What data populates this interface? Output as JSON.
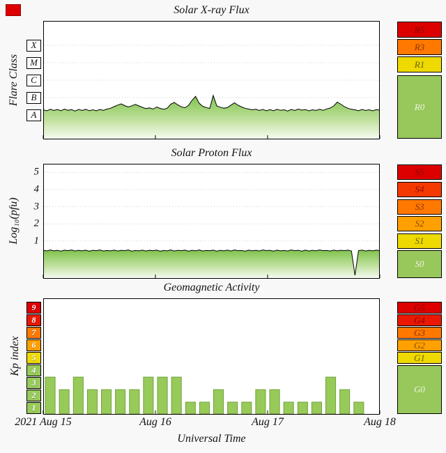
{
  "figure": {
    "bg_color": "#f8f8f8",
    "xlabel": "Universal Time",
    "x_tick_labels": [
      "2021 Aug 15",
      "Aug 16",
      "Aug 17",
      "Aug 18"
    ],
    "corner_marker_color": "#dd0000"
  },
  "chart_data": [
    {
      "id": "xray",
      "type": "line",
      "title": "Solar X-ray Flux",
      "ylabel": "Flare Class",
      "ylim": [
        0,
        6.8
      ],
      "line_color": "#000000",
      "fill_top": "#7fc24c",
      "fill_mid": "#bfe09c",
      "fill_bottom": "#f6fbf1",
      "y_ticks": {
        "style": "boxed-letters",
        "items": [
          {
            "label": "X",
            "value": 5.4
          },
          {
            "label": "M",
            "value": 4.4
          },
          {
            "label": "C",
            "value": 3.4
          },
          {
            "label": "B",
            "value": 2.4
          },
          {
            "label": "A",
            "value": 1.4
          }
        ]
      },
      "scale_column": [
        {
          "label": "R5",
          "bg": "#dd0000",
          "fg": "#8a0000"
        },
        {
          "label": "R3",
          "bg": "#ff7800",
          "fg": "#8a3400"
        },
        {
          "label": "R1",
          "bg": "#eed900",
          "fg": "#6e6000"
        },
        {
          "label": "R0",
          "bg": "#98c75c",
          "fg": "#edf6df",
          "fill": true
        }
      ],
      "values": [
        1.7,
        1.64,
        1.73,
        1.66,
        1.72,
        1.65,
        1.74,
        1.67,
        1.71,
        1.63,
        1.72,
        1.66,
        1.73,
        1.65,
        1.7,
        1.64,
        1.72,
        1.67,
        1.74,
        1.79,
        1.88,
        1.97,
        2.04,
        1.94,
        1.86,
        1.93,
        2.01,
        1.92,
        1.84,
        1.77,
        1.81,
        1.74,
        1.86,
        1.78,
        1.73,
        1.79,
        2.02,
        2.12,
        1.98,
        1.87,
        1.82,
        1.95,
        2.24,
        2.47,
        2.08,
        1.9,
        1.83,
        1.78,
        2.52,
        1.92,
        1.85,
        1.79,
        1.83,
        1.97,
        2.1,
        1.96,
        1.86,
        1.79,
        1.74,
        1.7,
        1.73,
        1.66,
        1.72,
        1.64,
        1.71,
        1.65,
        1.73,
        1.67,
        1.7,
        1.63,
        1.72,
        1.66,
        1.74,
        1.68,
        1.71,
        1.64,
        1.7,
        1.66,
        1.73,
        1.67,
        1.75,
        1.8,
        1.92,
        2.14,
        2.02,
        1.88,
        1.79,
        1.73,
        1.7,
        1.65,
        1.72,
        1.66,
        1.7,
        1.64,
        1.71,
        1.68
      ]
    },
    {
      "id": "proton",
      "type": "line",
      "title": "Solar Proton Flux",
      "ylabel": "Log₁₀(pfu)",
      "ylim": [
        -1.2,
        5.5
      ],
      "line_color": "#000000",
      "fill_top": "#7fc24c",
      "fill_mid": "#bfe09c",
      "fill_bottom": "#f6fbf1",
      "y_ticks": {
        "style": "plain",
        "items": [
          {
            "label": "5",
            "value": 5
          },
          {
            "label": "4",
            "value": 4
          },
          {
            "label": "3",
            "value": 3
          },
          {
            "label": "2",
            "value": 2
          },
          {
            "label": "1",
            "value": 1
          }
        ]
      },
      "scale_column": [
        {
          "label": "S5",
          "bg": "#dd0000",
          "fg": "#8a0000",
          "value": 5
        },
        {
          "label": "S4",
          "bg": "#f43a00",
          "fg": "#8a1000",
          "value": 4
        },
        {
          "label": "S3",
          "bg": "#ff7800",
          "fg": "#8a3400",
          "value": 3
        },
        {
          "label": "S2",
          "bg": "#ffa000",
          "fg": "#8a4a00",
          "value": 2
        },
        {
          "label": "S1",
          "bg": "#eed900",
          "fg": "#6e6000",
          "value": 1
        },
        {
          "label": "S0",
          "bg": "#98c75c",
          "fg": "#edf6df",
          "fill": true
        }
      ],
      "values": [
        0.47,
        0.42,
        0.48,
        0.43,
        0.46,
        0.41,
        0.47,
        0.44,
        0.48,
        0.42,
        0.46,
        0.43,
        0.47,
        0.41,
        0.46,
        0.44,
        0.48,
        0.42,
        0.45,
        0.43,
        0.47,
        0.42,
        0.46,
        0.44,
        0.48,
        0.41,
        0.45,
        0.43,
        0.47,
        0.42,
        0.46,
        0.44,
        0.47,
        0.41,
        0.45,
        0.43,
        0.48,
        0.42,
        0.46,
        0.44,
        0.47,
        0.41,
        0.46,
        0.43,
        0.48,
        0.42,
        0.45,
        0.44,
        0.47,
        0.41,
        0.46,
        0.43,
        0.47,
        0.42,
        0.48,
        0.44,
        0.45,
        0.41,
        0.47,
        0.43,
        0.46,
        0.42,
        0.48,
        0.44,
        0.46,
        0.41,
        0.47,
        0.43,
        0.45,
        0.42,
        0.48,
        0.44,
        0.46,
        0.41,
        0.47,
        0.42,
        0.46,
        0.43,
        0.48,
        0.44,
        0.45,
        0.42,
        0.47,
        0.43,
        0.46,
        0.44,
        0.47,
        0.42,
        -1.0,
        0.45,
        0.47,
        0.42,
        0.46,
        0.43,
        0.47,
        0.44
      ]
    },
    {
      "id": "kp",
      "type": "bar",
      "title": "Geomagnetic Activity",
      "ylabel": "Kp index",
      "ylim": [
        0,
        9.3
      ],
      "bar_color": "#98ca5a",
      "bar_border": "#6fa23a",
      "y_ticks": {
        "style": "boxed-colored",
        "items": [
          {
            "label": "9",
            "value": 9,
            "bg": "#dd0000",
            "fg": "#ffffff"
          },
          {
            "label": "8",
            "value": 8,
            "bg": "#ea1800",
            "fg": "#ffffff"
          },
          {
            "label": "7",
            "value": 7,
            "bg": "#ff7800",
            "fg": "#ffffff"
          },
          {
            "label": "6",
            "value": 6,
            "bg": "#ffa000",
            "fg": "#ffffff"
          },
          {
            "label": "5",
            "value": 5,
            "bg": "#eed900",
            "fg": "#ffffff"
          },
          {
            "label": "4",
            "value": 4,
            "bg": "#98ca5a",
            "fg": "#ffffff"
          },
          {
            "label": "3",
            "value": 3,
            "bg": "#98ca5a",
            "fg": "#ffffff"
          },
          {
            "label": "2",
            "value": 2,
            "bg": "#98ca5a",
            "fg": "#ffffff"
          },
          {
            "label": "1",
            "value": 1,
            "bg": "#98ca5a",
            "fg": "#ffffff"
          }
        ]
      },
      "scale_column": [
        {
          "label": "G5",
          "bg": "#dd0000",
          "fg": "#8a0000",
          "value": 9
        },
        {
          "label": "G4",
          "bg": "#ea1800",
          "fg": "#8a0000",
          "value": 8
        },
        {
          "label": "G3",
          "bg": "#ff7800",
          "fg": "#8a3400",
          "value": 7
        },
        {
          "label": "G2",
          "bg": "#ffa000",
          "fg": "#8a4a00",
          "value": 6
        },
        {
          "label": "G1",
          "bg": "#eed900",
          "fg": "#6e6000",
          "value": 5
        },
        {
          "label": "G0",
          "bg": "#98c75c",
          "fg": "#edf6df",
          "fill": true
        }
      ],
      "values": [
        3,
        2,
        3,
        2,
        2,
        2,
        2,
        3,
        3,
        3,
        1,
        1,
        2,
        1,
        1,
        2,
        2,
        1,
        1,
        1,
        3,
        2,
        1
      ]
    }
  ]
}
